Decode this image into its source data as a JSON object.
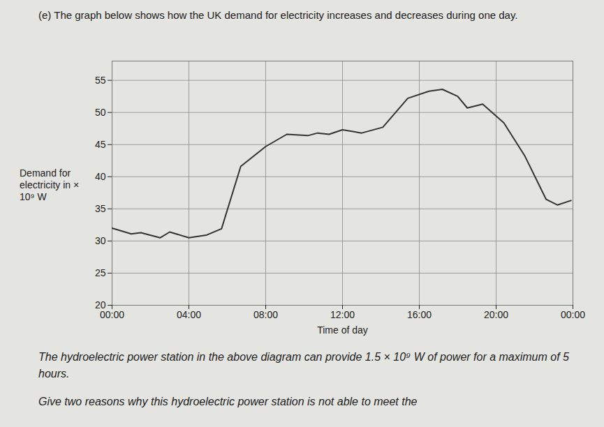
{
  "chart_data": {
    "type": "line",
    "title": "(e) The graph below shows how the UK demand for electricity increases and decreases during one day.",
    "x_label": "Time of day",
    "y_label": "Demand for electricity in × 10⁹ W",
    "annotations": [
      "The hydroelectric power station in the above diagram can provide 1.5 × 10⁹ W of power for a maximum of 5 hours.",
      "Give two reasons why this hydroelectric power station is not able to meet the"
    ],
    "x": [
      0,
      1.0,
      1.5,
      2.5,
      3.0,
      4.0,
      4.9,
      5.7,
      6.7,
      8.0,
      9.1,
      10.2,
      10.7,
      11.3,
      12.0,
      13.0,
      14.1,
      15.4,
      16.5,
      17.2,
      18.0,
      18.5,
      19.3,
      20.4,
      21.5,
      22.6,
      23.2,
      23.9
    ],
    "values": [
      32.0,
      31.1,
      31.3,
      30.5,
      31.4,
      30.5,
      30.9,
      31.9,
      41.6,
      44.7,
      46.6,
      46.4,
      46.8,
      46.6,
      47.3,
      46.8,
      47.7,
      52.2,
      53.3,
      53.6,
      52.5,
      50.7,
      51.3,
      48.4,
      43.2,
      36.5,
      35.6,
      36.3
    ],
    "color": "#333333",
    "xlim": [
      0,
      24
    ],
    "xticks": [
      {
        "value": 0,
        "label": "00:00"
      },
      {
        "value": 4,
        "label": "04:00"
      },
      {
        "value": 8,
        "label": "08:00"
      },
      {
        "value": 12,
        "label": "12:00"
      },
      {
        "value": 16,
        "label": "16:00"
      },
      {
        "value": 20,
        "label": "20:00"
      },
      {
        "value": 24,
        "label": "00:00"
      }
    ],
    "ylim": [
      20,
      58
    ],
    "yticks": [
      20,
      25,
      30,
      35,
      40,
      45,
      50,
      55
    ],
    "grid": true
  }
}
